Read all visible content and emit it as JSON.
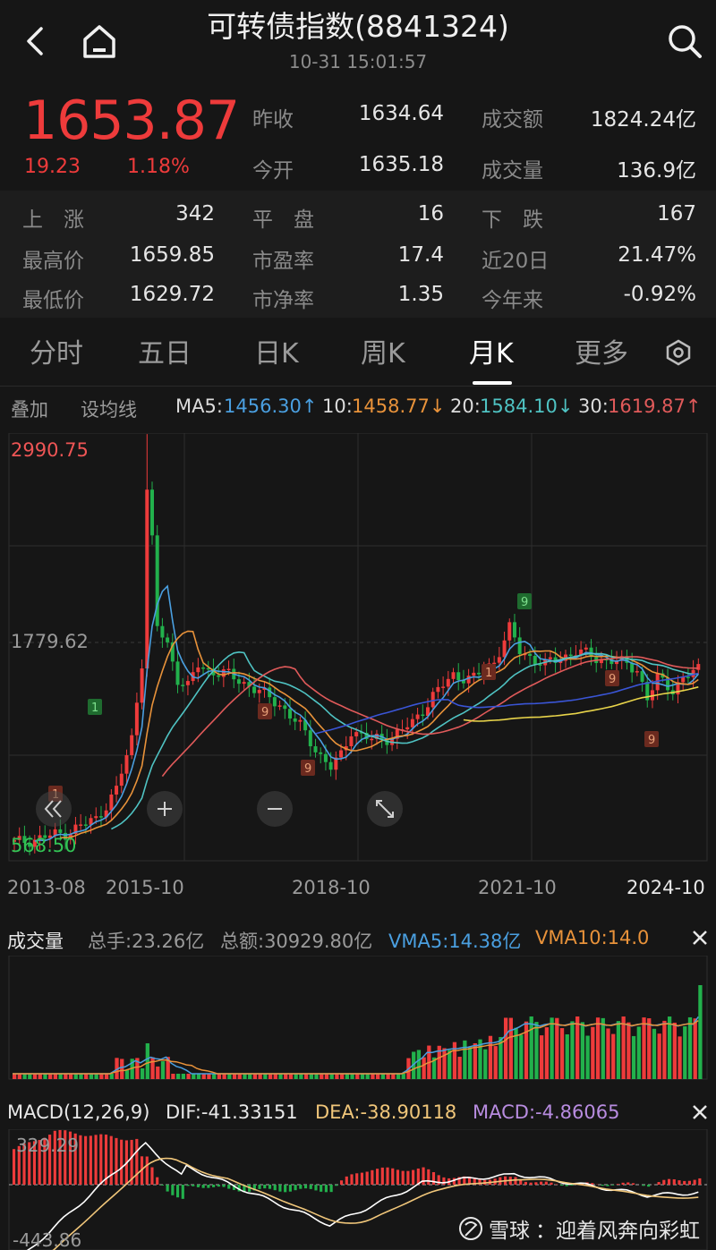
{
  "header": {
    "title": "可转债指数(8841324)",
    "datetime": "10-31  15:01:57",
    "back_icon": "chevron-left-icon",
    "home_icon": "home-icon",
    "search_icon": "search-icon"
  },
  "quote": {
    "price": "1653.87",
    "change": "19.23",
    "change_pct": "1.18%",
    "prev_close_label": "昨收",
    "prev_close": "1634.64",
    "open_label": "今开",
    "open": "1635.18",
    "turnover_label": "成交额",
    "turnover": "1824.24亿",
    "volume_label": "成交量",
    "volume": "136.9亿"
  },
  "stats": {
    "rise_label": "上　涨",
    "rise": "342",
    "flat_label": "平　盘",
    "flat": "16",
    "fall_label": "下　跌",
    "fall": "167",
    "high_label": "最高价",
    "high": "1659.85",
    "pe_label": "市盈率",
    "pe": "17.4",
    "d20_label": "近20日",
    "d20": "21.47%",
    "low_label": "最低价",
    "low": "1629.72",
    "pb_label": "市净率",
    "pb": "1.35",
    "ytd_label": "今年来",
    "ytd": "-0.92%"
  },
  "tabs": [
    "分时",
    "五日",
    "日K",
    "周K",
    "月K",
    "更多"
  ],
  "active_tab": "月K",
  "settings_icon": "hexagon-settings-icon",
  "ma": {
    "overlay_label": "叠加",
    "set_ma_label": "设均线",
    "ma5": "MA5:1456.30↑",
    "ma10": "10:1458.77↓",
    "ma20": "20:1584.10↓",
    "ma30": "30:1619.87↑"
  },
  "colors": {
    "up": "#ee3b3b",
    "down": "#22b14c",
    "ma5": "#4a9fe0",
    "ma10": "#e8923a",
    "ma20": "#4fc3c3",
    "ma30": "#e05a5a",
    "ma60": "#3a55d6",
    "ma120": "#e8d44a",
    "dea": "#f0c67a",
    "macd": "#b88ce0"
  },
  "chart_data": [
    {
      "type": "candlestick",
      "title": "月K",
      "y_max_label": "2990.75",
      "y_mid_label": "1779.62",
      "y_min_label": "568.50",
      "x_ticks": [
        "2013-08",
        "2015-10",
        "2018-10",
        "2021-10",
        "2024-10"
      ],
      "ylim": [
        568.5,
        2990.75
      ],
      "marks": [
        "9",
        "1",
        "1",
        "9",
        "9",
        "1",
        "9"
      ],
      "controls": {
        "rewind_icon": "double-chevron-left-icon",
        "zoom_in_icon": "plus-icon",
        "zoom_out_icon": "minus-icon",
        "fullscreen_icon": "expand-icon"
      }
    },
    {
      "type": "bar",
      "title": "成交量",
      "total_hands": "总手:23.26亿",
      "total_amount": "总额:30929.80亿",
      "vma5": "VMA5:14.38亿",
      "vma10": "VMA10:14.0",
      "close_icon": "close-icon"
    },
    {
      "type": "bar",
      "title": "MACD(12,26,9)",
      "dif": "DIF:-41.33151",
      "dea": "DEA:-38.90118",
      "macd": "MACD:-4.86065",
      "y_max_label": "329.29",
      "y_min_label": "-443.86",
      "close_icon": "close-icon"
    }
  ],
  "watermark": {
    "brand": "雪球",
    "text": "：迎着风奔向彩虹"
  }
}
